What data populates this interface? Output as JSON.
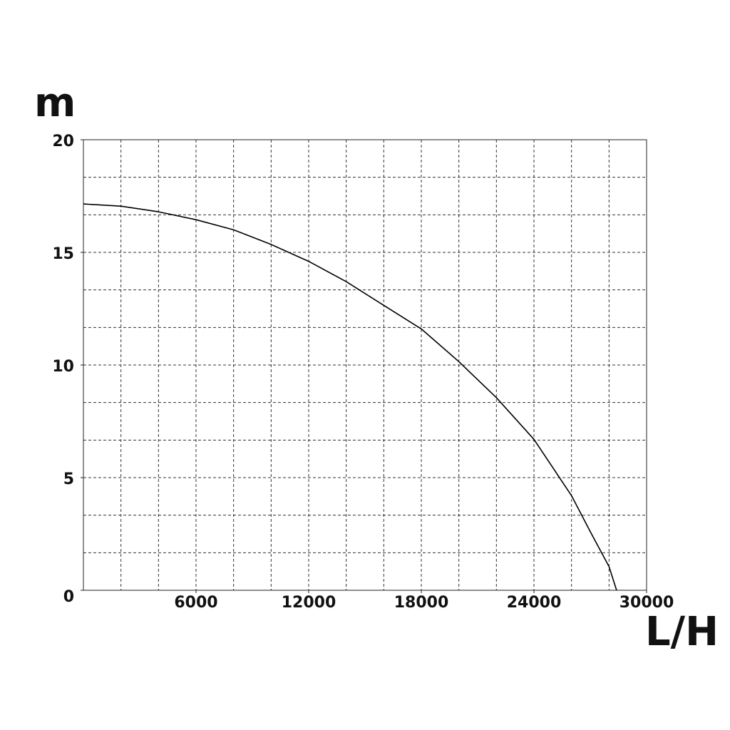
{
  "chart_data": {
    "type": "line",
    "y_label": "m",
    "x_label": "L/H",
    "xlim": [
      0,
      30000
    ],
    "ylim": [
      0,
      20
    ],
    "xticks": [
      6000,
      12000,
      18000,
      24000,
      30000
    ],
    "yticks": [
      0,
      5,
      10,
      15,
      20
    ],
    "grid": {
      "x_step": 2000,
      "y_divisions": 12
    },
    "x": [
      0,
      2000,
      4000,
      6000,
      8000,
      10000,
      12000,
      14000,
      16000,
      18000,
      20000,
      22000,
      24000,
      26000,
      27000,
      28000,
      28400
    ],
    "series": [
      {
        "color": "#000000",
        "values": [
          17.15,
          17.05,
          16.8,
          16.45,
          16.0,
          15.35,
          14.6,
          13.7,
          12.65,
          11.6,
          10.15,
          8.55,
          6.7,
          4.2,
          2.6,
          1.05,
          0
        ]
      }
    ]
  }
}
